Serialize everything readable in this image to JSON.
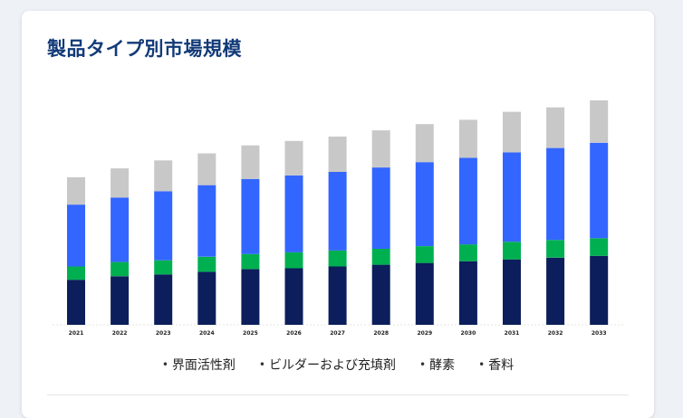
{
  "title": "製品タイプ別市場規模",
  "chart_data": {
    "type": "bar",
    "stacked": true,
    "categories": [
      "2021",
      "2022",
      "2023",
      "2024",
      "2025",
      "2026",
      "2027",
      "2028",
      "2029",
      "2030",
      "2031",
      "2032",
      "2033"
    ],
    "series": [
      {
        "name": "界面活性剤",
        "color": "#0c1e5b",
        "values": [
          51,
          55,
          57,
          60,
          63,
          64,
          66,
          68,
          70,
          72,
          74,
          76,
          78
        ]
      },
      {
        "name": "ビルダーおよび充填剤",
        "color": "#00b050",
        "values": [
          15,
          16,
          16,
          17,
          17,
          18,
          18,
          18,
          19,
          19,
          20,
          20,
          20
        ]
      },
      {
        "name": "酵素",
        "color": "#3366ff",
        "values": [
          70,
          73,
          78,
          81,
          85,
          87,
          89,
          92,
          95,
          98,
          101,
          104,
          108
        ]
      },
      {
        "name": "香料",
        "color": "#c8c8c8",
        "values": [
          31,
          33,
          35,
          36,
          38,
          39,
          40,
          42,
          43,
          43,
          46,
          46,
          48
        ]
      }
    ],
    "xlabel": "",
    "ylabel": "",
    "ylim": [
      0,
      260
    ],
    "grid": false,
    "legend_position": "bottom"
  },
  "legend": [
    {
      "bullet": "•",
      "label": "界面活性剤"
    },
    {
      "bullet": "•",
      "label": "ビルダーおよび充填剤"
    },
    {
      "bullet": "•",
      "label": "酵素"
    },
    {
      "bullet": "•",
      "label": "香料"
    }
  ]
}
